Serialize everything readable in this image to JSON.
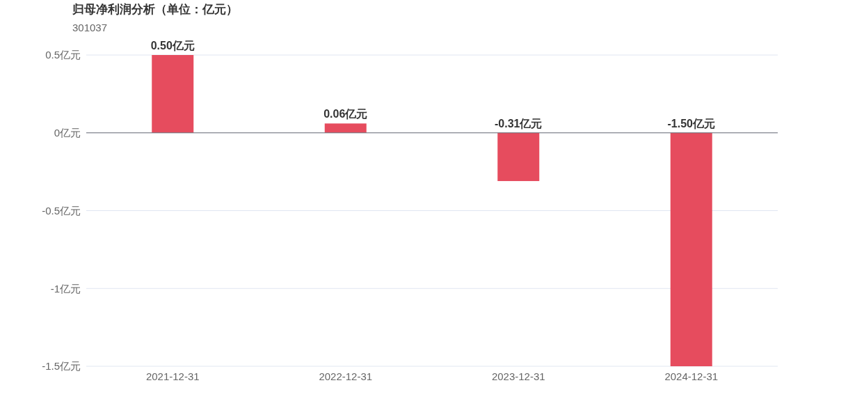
{
  "chart_data": {
    "type": "bar",
    "title": "归母净利润分析（单位：亿元）",
    "subtitle": "301037",
    "categories": [
      "2021-12-31",
      "2022-12-31",
      "2023-12-31",
      "2024-12-31"
    ],
    "values": [
      0.5,
      0.06,
      -0.31,
      -1.5
    ],
    "value_labels": [
      "0.50亿元",
      "0.06亿元",
      "-0.31亿元",
      "-1.50亿元"
    ],
    "color": "#e64c5e",
    "ylim": [
      -1.5,
      0.5
    ],
    "yticks": [
      {
        "value": 0.5,
        "label": "0.5亿元"
      },
      {
        "value": 0,
        "label": "0亿元"
      },
      {
        "value": -0.5,
        "label": "-0.5亿元"
      },
      {
        "value": -1,
        "label": "-1亿元"
      },
      {
        "value": -1.5,
        "label": "-1.5亿元"
      }
    ],
    "grid": "y"
  }
}
